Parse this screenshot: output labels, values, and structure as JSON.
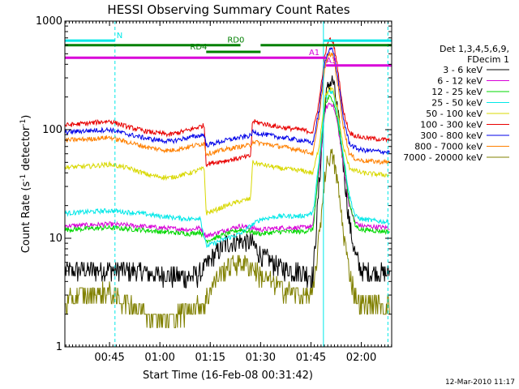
{
  "chart_data": {
    "type": "line",
    "title": "HESSI Observing Summary Count Rates",
    "xlabel": "Start Time (16-Feb-08 00:31:42)",
    "ylabel_parts": [
      "Count Rate (s",
      "-1",
      " detector",
      "-1",
      ")"
    ],
    "y_scale": "log",
    "ylim": [
      1,
      1000
    ],
    "y_ticks": [
      {
        "value": 1,
        "label": "1"
      },
      {
        "value": 10,
        "label": "10"
      },
      {
        "value": 100,
        "label": "100"
      },
      {
        "value": 1000,
        "label": "1000"
      }
    ],
    "xlim": [
      0.5283,
      2.1508
    ],
    "x_ticks": [
      {
        "value": 0.75,
        "label": "00:45"
      },
      {
        "value": 1.0,
        "label": "01:00"
      },
      {
        "value": 1.25,
        "label": "01:15"
      },
      {
        "value": 1.5,
        "label": "01:30"
      },
      {
        "value": 1.75,
        "label": "01:45"
      },
      {
        "value": 2.0,
        "label": "02:00"
      }
    ],
    "legend": {
      "placement": "right",
      "header": [
        "Det 1,3,4,5,6,9,",
        "FDecim 1"
      ],
      "entries": [
        {
          "label": "3 - 6 keV",
          "color": "#000000"
        },
        {
          "label": "6 - 12 keV",
          "color": "#d800d8"
        },
        {
          "label": "12 - 25 keV",
          "color": "#00d800"
        },
        {
          "label": "25 - 50 keV",
          "color": "#00e8e8"
        },
        {
          "label": "50 - 100 keV",
          "color": "#d8d800"
        },
        {
          "label": "100 - 300 keV",
          "color": "#e80000"
        },
        {
          "label": "300 - 800 keV",
          "color": "#0000e8"
        },
        {
          "label": "800 - 7000 keV",
          "color": "#ff8000"
        },
        {
          "label": "7000 - 20000 keV",
          "color": "#808000"
        }
      ]
    },
    "series": [
      {
        "name": "3 - 6 keV",
        "color": "#000000",
        "points": [
          [
            0.53,
            5
          ],
          [
            0.75,
            5.2
          ],
          [
            0.9,
            5
          ],
          [
            1.0,
            4.6
          ],
          [
            1.15,
            4.4
          ],
          [
            1.2,
            4.8
          ],
          [
            1.27,
            7
          ],
          [
            1.33,
            9
          ],
          [
            1.4,
            9.5
          ],
          [
            1.46,
            9
          ],
          [
            1.5,
            7
          ],
          [
            1.6,
            5.4
          ],
          [
            1.7,
            5
          ],
          [
            1.76,
            4.5
          ],
          [
            1.79,
            30
          ],
          [
            1.82,
            180
          ],
          [
            1.84,
            270
          ],
          [
            1.86,
            280
          ],
          [
            1.88,
            160
          ],
          [
            1.91,
            50
          ],
          [
            1.94,
            14
          ],
          [
            1.97,
            7
          ],
          [
            2.0,
            5
          ],
          [
            2.14,
            4.8
          ]
        ]
      },
      {
        "name": "6 - 12 keV",
        "color": "#d800d8",
        "points": [
          [
            0.53,
            13
          ],
          [
            0.75,
            13.5
          ],
          [
            0.9,
            13
          ],
          [
            1.0,
            12.5
          ],
          [
            1.15,
            12
          ],
          [
            1.2,
            12.5
          ],
          [
            1.23,
            10.5
          ],
          [
            1.27,
            11
          ],
          [
            1.33,
            12
          ],
          [
            1.4,
            13
          ],
          [
            1.45,
            12.5
          ],
          [
            1.5,
            12
          ],
          [
            1.6,
            12.5
          ],
          [
            1.7,
            12.5
          ],
          [
            1.76,
            13
          ],
          [
            1.79,
            40
          ],
          [
            1.82,
            150
          ],
          [
            1.84,
            175
          ],
          [
            1.86,
            170
          ],
          [
            1.88,
            120
          ],
          [
            1.91,
            50
          ],
          [
            1.94,
            20
          ],
          [
            1.97,
            14
          ],
          [
            2.0,
            13
          ],
          [
            2.14,
            12.5
          ]
        ]
      },
      {
        "name": "12 - 25 keV",
        "color": "#00d800",
        "points": [
          [
            0.53,
            12
          ],
          [
            0.75,
            12.5
          ],
          [
            0.9,
            12
          ],
          [
            1.0,
            11.5
          ],
          [
            1.15,
            11
          ],
          [
            1.2,
            11.5
          ],
          [
            1.23,
            9.5
          ],
          [
            1.27,
            10
          ],
          [
            1.33,
            11
          ],
          [
            1.4,
            12
          ],
          [
            1.45,
            11.5
          ],
          [
            1.5,
            11
          ],
          [
            1.6,
            11.5
          ],
          [
            1.7,
            11.5
          ],
          [
            1.76,
            12
          ],
          [
            1.79,
            45
          ],
          [
            1.82,
            170
          ],
          [
            1.84,
            200
          ],
          [
            1.86,
            190
          ],
          [
            1.88,
            130
          ],
          [
            1.91,
            55
          ],
          [
            1.94,
            22
          ],
          [
            1.97,
            13
          ],
          [
            2.0,
            12
          ],
          [
            2.14,
            11.5
          ]
        ]
      },
      {
        "name": "25 - 50 keV",
        "color": "#00e8e8",
        "points": [
          [
            0.53,
            17
          ],
          [
            0.75,
            18
          ],
          [
            0.9,
            17
          ],
          [
            1.0,
            16
          ],
          [
            1.15,
            15
          ],
          [
            1.2,
            15.5
          ],
          [
            1.23,
            8.5
          ],
          [
            1.27,
            9
          ],
          [
            1.33,
            10
          ],
          [
            1.4,
            11
          ],
          [
            1.45,
            13
          ],
          [
            1.5,
            15
          ],
          [
            1.6,
            16
          ],
          [
            1.7,
            16
          ],
          [
            1.76,
            17
          ],
          [
            1.79,
            50
          ],
          [
            1.82,
            190
          ],
          [
            1.84,
            230
          ],
          [
            1.86,
            220
          ],
          [
            1.88,
            150
          ],
          [
            1.91,
            60
          ],
          [
            1.94,
            25
          ],
          [
            1.97,
            16
          ],
          [
            2.0,
            15
          ],
          [
            2.14,
            14
          ]
        ]
      },
      {
        "name": "50 - 100 keV",
        "color": "#d8d800",
        "points": [
          [
            0.53,
            45
          ],
          [
            0.65,
            46
          ],
          [
            0.75,
            48
          ],
          [
            0.85,
            44
          ],
          [
            0.95,
            38
          ],
          [
            1.05,
            36
          ],
          [
            1.15,
            40
          ],
          [
            1.22,
            44
          ],
          [
            1.23,
            17
          ],
          [
            1.27,
            18
          ],
          [
            1.33,
            20
          ],
          [
            1.4,
            22
          ],
          [
            1.45,
            23
          ],
          [
            1.46,
            50
          ],
          [
            1.5,
            48
          ],
          [
            1.6,
            44
          ],
          [
            1.7,
            42
          ],
          [
            1.76,
            40
          ],
          [
            1.79,
            70
          ],
          [
            1.82,
            200
          ],
          [
            1.84,
            240
          ],
          [
            1.86,
            230
          ],
          [
            1.88,
            160
          ],
          [
            1.91,
            70
          ],
          [
            1.94,
            45
          ],
          [
            1.97,
            42
          ],
          [
            2.0,
            40
          ],
          [
            2.14,
            38
          ]
        ]
      },
      {
        "name": "100 - 300 keV",
        "color": "#e80000",
        "points": [
          [
            0.53,
            110
          ],
          [
            0.65,
            115
          ],
          [
            0.75,
            120
          ],
          [
            0.85,
            105
          ],
          [
            0.95,
            95
          ],
          [
            1.05,
            90
          ],
          [
            1.15,
            100
          ],
          [
            1.22,
            110
          ],
          [
            1.23,
            48
          ],
          [
            1.27,
            50
          ],
          [
            1.33,
            52
          ],
          [
            1.4,
            55
          ],
          [
            1.45,
            57
          ],
          [
            1.46,
            120
          ],
          [
            1.5,
            115
          ],
          [
            1.6,
            105
          ],
          [
            1.7,
            100
          ],
          [
            1.76,
            95
          ],
          [
            1.79,
            180
          ],
          [
            1.82,
            500
          ],
          [
            1.84,
            680
          ],
          [
            1.86,
            650
          ],
          [
            1.88,
            400
          ],
          [
            1.91,
            150
          ],
          [
            1.94,
            95
          ],
          [
            1.97,
            88
          ],
          [
            2.0,
            85
          ],
          [
            2.14,
            80
          ]
        ]
      },
      {
        "name": "300 - 800 keV",
        "color": "#0000e8",
        "points": [
          [
            0.53,
            95
          ],
          [
            0.65,
            98
          ],
          [
            0.75,
            100
          ],
          [
            0.85,
            90
          ],
          [
            0.95,
            82
          ],
          [
            1.05,
            78
          ],
          [
            1.15,
            85
          ],
          [
            1.22,
            90
          ],
          [
            1.23,
            72
          ],
          [
            1.27,
            75
          ],
          [
            1.33,
            80
          ],
          [
            1.4,
            85
          ],
          [
            1.45,
            88
          ],
          [
            1.46,
            95
          ],
          [
            1.5,
            92
          ],
          [
            1.6,
            85
          ],
          [
            1.7,
            80
          ],
          [
            1.76,
            75
          ],
          [
            1.79,
            150
          ],
          [
            1.82,
            420
          ],
          [
            1.84,
            560
          ],
          [
            1.86,
            540
          ],
          [
            1.88,
            330
          ],
          [
            1.91,
            130
          ],
          [
            1.94,
            75
          ],
          [
            1.97,
            68
          ],
          [
            2.0,
            65
          ],
          [
            2.14,
            62
          ]
        ]
      },
      {
        "name": "800 - 7000 keV",
        "color": "#ff8000",
        "points": [
          [
            0.53,
            80
          ],
          [
            0.65,
            82
          ],
          [
            0.75,
            85
          ],
          [
            0.85,
            76
          ],
          [
            0.95,
            68
          ],
          [
            1.05,
            64
          ],
          [
            1.15,
            70
          ],
          [
            1.22,
            75
          ],
          [
            1.23,
            60
          ],
          [
            1.27,
            62
          ],
          [
            1.33,
            66
          ],
          [
            1.4,
            70
          ],
          [
            1.45,
            72
          ],
          [
            1.46,
            78
          ],
          [
            1.5,
            75
          ],
          [
            1.6,
            70
          ],
          [
            1.7,
            65
          ],
          [
            1.76,
            60
          ],
          [
            1.79,
            130
          ],
          [
            1.82,
            380
          ],
          [
            1.84,
            500
          ],
          [
            1.86,
            480
          ],
          [
            1.88,
            290
          ],
          [
            1.91,
            110
          ],
          [
            1.94,
            60
          ],
          [
            1.97,
            54
          ],
          [
            2.0,
            52
          ],
          [
            2.14,
            50
          ]
        ]
      },
      {
        "name": "7000 - 20000 keV",
        "color": "#808000",
        "points": [
          [
            0.53,
            2.5
          ],
          [
            0.6,
            3
          ],
          [
            0.75,
            3.2
          ],
          [
            0.85,
            2.5
          ],
          [
            0.95,
            2
          ],
          [
            1.05,
            1.8
          ],
          [
            1.15,
            2.2
          ],
          [
            1.22,
            2.5
          ],
          [
            1.27,
            4
          ],
          [
            1.33,
            5.5
          ],
          [
            1.4,
            6
          ],
          [
            1.46,
            5.5
          ],
          [
            1.5,
            4.5
          ],
          [
            1.6,
            3.5
          ],
          [
            1.7,
            3
          ],
          [
            1.76,
            3
          ],
          [
            1.79,
            10
          ],
          [
            1.82,
            40
          ],
          [
            1.84,
            58
          ],
          [
            1.86,
            55
          ],
          [
            1.88,
            35
          ],
          [
            1.91,
            12
          ],
          [
            1.94,
            5
          ],
          [
            1.97,
            3
          ],
          [
            2.0,
            2.5
          ],
          [
            2.14,
            2.4
          ]
        ]
      }
    ],
    "vertical_markers": [
      {
        "x": 0.777,
        "color": "#00e8e8",
        "style": "dashed"
      },
      {
        "x": 1.812,
        "color": "#00e8e8",
        "style": "solid"
      },
      {
        "x": 2.132,
        "color": "#00e8e8",
        "style": "dashed"
      }
    ],
    "mode_bars": [
      {
        "label": "N",
        "color": "#00e8e8",
        "y": 660,
        "segments": [
          [
            0.53,
            0.777
          ],
          [
            1.812,
            2.15
          ]
        ],
        "label_x": 0.785
      },
      {
        "label": "RD0",
        "color": "#008000",
        "y": 600,
        "segments": [
          [
            0.53,
            1.4
          ],
          [
            1.5,
            2.15
          ]
        ],
        "label_x": 1.335
      },
      {
        "label": "RD4",
        "color": "#008000",
        "y": 520,
        "segments": [
          [
            1.23,
            1.5
          ]
        ],
        "label_x": 1.15
      },
      {
        "label": "A1",
        "color": "#d800d8",
        "y": 460,
        "segments": [
          [
            0.53,
            1.825
          ]
        ],
        "label_x": 1.74
      },
      {
        "label": "A3",
        "color": "#d800d8",
        "y": 390,
        "segments": [
          [
            1.825,
            2.15
          ]
        ],
        "label_x": 1.825
      }
    ],
    "timestamp": "12-Mar-2010 11:17"
  }
}
